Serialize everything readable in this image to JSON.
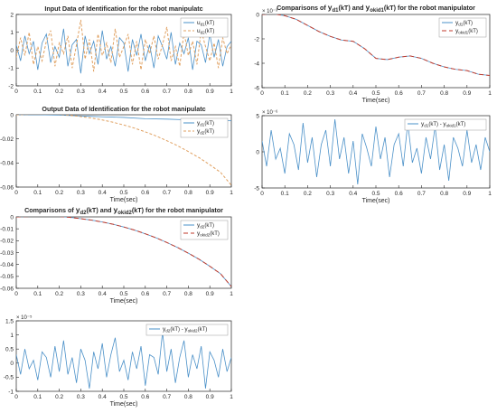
{
  "figure": {
    "background": "#ffffff",
    "axis_color": "#262626",
    "grid": false
  },
  "chart_data": [
    {
      "id": "p1",
      "type": "line",
      "title": "Input Data of Identification for the robot manipulatc",
      "xlabel": "",
      "ylabel": "",
      "xlim": [
        0,
        1
      ],
      "ylim": [
        -2,
        2
      ],
      "xticks": [
        0,
        0.1,
        0.2,
        0.3,
        0.4,
        0.5,
        0.6,
        0.7,
        0.8,
        0.9,
        1
      ],
      "yticks": [
        -2,
        -1,
        0,
        1,
        2
      ],
      "legend": {
        "position": "top-right"
      },
      "series": [
        {
          "label": "u_d1(kT)",
          "sub": "d1",
          "main": "u",
          "suffix": "(kT)",
          "color": "#4a90c8",
          "dash": "",
          "x": [
            0,
            0.02,
            0.04,
            0.06,
            0.08,
            0.1,
            0.12,
            0.14,
            0.16,
            0.18,
            0.2,
            0.22,
            0.24,
            0.26,
            0.28,
            0.3,
            0.32,
            0.34,
            0.36,
            0.38,
            0.4,
            0.42,
            0.44,
            0.46,
            0.48,
            0.5,
            0.52,
            0.54,
            0.56,
            0.58,
            0.6,
            0.62,
            0.64,
            0.66,
            0.68,
            0.7,
            0.72,
            0.74,
            0.76,
            0.78,
            0.8,
            0.82,
            0.84,
            0.86,
            0.88,
            0.9,
            0.92,
            0.94,
            0.96,
            0.98,
            1
          ],
          "y": [
            0.3,
            -0.6,
            0.8,
            -0.2,
            0.5,
            -1.1,
            0.4,
            0.9,
            -0.7,
            0.2,
            -0.4,
            1.2,
            -0.9,
            0.3,
            0.6,
            -1.3,
            0.8,
            -0.2,
            0.5,
            -0.8,
            1.1,
            -0.5,
            0.2,
            -0.9,
            0.7,
            0.4,
            -1.2,
            0.6,
            -0.3,
            0.9,
            -0.6,
            0.3,
            -1.0,
            0.8,
            0.2,
            -0.5,
            1.0,
            -0.8,
            0.4,
            -0.2,
            0.7,
            -1.1,
            0.5,
            0.3,
            -0.7,
            0.9,
            -0.4,
            0.6,
            -0.9,
            0.2,
            0.5
          ]
        },
        {
          "label": "u_d2(kT)",
          "sub": "d2",
          "main": "u",
          "suffix": "(kT)",
          "color": "#e0a060",
          "dash": "3,2",
          "x": [
            0,
            0.02,
            0.04,
            0.06,
            0.08,
            0.1,
            0.12,
            0.14,
            0.16,
            0.18,
            0.2,
            0.22,
            0.24,
            0.26,
            0.28,
            0.3,
            0.32,
            0.34,
            0.36,
            0.38,
            0.4,
            0.42,
            0.44,
            0.46,
            0.48,
            0.5,
            0.52,
            0.54,
            0.56,
            0.58,
            0.6,
            0.62,
            0.64,
            0.66,
            0.68,
            0.7,
            0.72,
            0.74,
            0.76,
            0.78,
            0.8,
            0.82,
            0.84,
            0.86,
            0.88,
            0.9,
            0.92,
            0.94,
            0.96,
            0.98,
            1
          ],
          "y": [
            -0.4,
            0.7,
            -0.3,
            1.0,
            -0.8,
            0.2,
            -0.6,
            0.5,
            1.1,
            -0.9,
            0.4,
            -0.2,
            0.8,
            -1.0,
            0.3,
            1.7,
            -0.5,
            0.6,
            -1.2,
            0.9,
            -0.3,
            0.4,
            -0.7,
            1.2,
            -0.4,
            0.2,
            0.9,
            -0.8,
            0.5,
            -1.1,
            0.6,
            -0.2,
            0.8,
            -0.5,
            0.3,
            1.3,
            -0.6,
            0.2,
            -0.9,
            1.0,
            -0.3,
            0.5,
            -0.8,
            1.1,
            0.2,
            -0.6,
            0.4,
            -1.0,
            0.7,
            -0.2,
            0.3
          ]
        }
      ]
    },
    {
      "id": "p2",
      "type": "line",
      "title": "Output Data of Identification for the robot manipulatc",
      "xlabel": "Time(sec)",
      "ylabel": "",
      "xlim": [
        0,
        1
      ],
      "ylim": [
        -0.06,
        0
      ],
      "xticks": [
        0,
        0.1,
        0.2,
        0.3,
        0.4,
        0.5,
        0.6,
        0.7,
        0.8,
        0.9,
        1
      ],
      "yticks": [
        -0.06,
        -0.04,
        -0.02,
        0
      ],
      "legend": {
        "position": "top-right"
      },
      "series": [
        {
          "label": "y_d1(kT)",
          "sub": "d1",
          "main": "y",
          "suffix": "(kT)",
          "color": "#4a90c8",
          "dash": "",
          "x": [
            0,
            0.1,
            0.2,
            0.3,
            0.4,
            0.5,
            0.6,
            0.7,
            0.8,
            0.9,
            1
          ],
          "y": [
            0,
            0,
            -0.0003,
            -0.001,
            -0.0017,
            -0.0022,
            -0.0033,
            -0.0036,
            -0.0042,
            -0.0047,
            -0.005
          ]
        },
        {
          "label": "y_d2(kT)",
          "sub": "d2",
          "main": "y",
          "suffix": "(kT)",
          "color": "#e0a060",
          "dash": "3,2",
          "x": [
            0,
            0.05,
            0.1,
            0.15,
            0.2,
            0.25,
            0.3,
            0.35,
            0.4,
            0.45,
            0.5,
            0.55,
            0.6,
            0.65,
            0.7,
            0.75,
            0.8,
            0.85,
            0.9,
            0.95,
            1
          ],
          "y": [
            0,
            0.0003,
            0.0006,
            0.0006,
            0.0003,
            -0.0004,
            -0.0015,
            -0.0027,
            -0.0043,
            -0.0062,
            -0.0085,
            -0.0111,
            -0.0142,
            -0.0176,
            -0.0215,
            -0.0257,
            -0.0305,
            -0.0356,
            -0.0415,
            -0.0478,
            -0.0585
          ]
        }
      ]
    },
    {
      "id": "p3",
      "type": "line",
      "title_parts": {
        "pre": "Comparisons of ",
        "a_main": "y",
        "a_sub": "d2",
        "a_suf": "(kT) and ",
        "b_main": "y",
        "b_sub": "okid2",
        "b_suf": "(kT) for the robot manipulator"
      },
      "xlabel": "Time(sec)",
      "ylabel": "",
      "xlim": [
        0,
        1
      ],
      "ylim": [
        -0.06,
        0
      ],
      "xticks": [
        0,
        0.1,
        0.2,
        0.3,
        0.4,
        0.5,
        0.6,
        0.7,
        0.8,
        0.9,
        1
      ],
      "yticks": [
        -0.06,
        -0.05,
        -0.04,
        -0.03,
        -0.02,
        -0.01,
        0
      ],
      "legend": {
        "position": "top-right"
      },
      "series": [
        {
          "label": "y_d2(kT)",
          "sub": "d2",
          "main": "y",
          "suffix": "(kT)",
          "color": "#4a90c8",
          "dash": "",
          "x": [
            0,
            0.05,
            0.1,
            0.15,
            0.2,
            0.25,
            0.3,
            0.35,
            0.4,
            0.45,
            0.5,
            0.55,
            0.6,
            0.65,
            0.7,
            0.75,
            0.8,
            0.85,
            0.9,
            0.95,
            1
          ],
          "y": [
            0,
            0.0003,
            0.0006,
            0.0006,
            0.0003,
            -0.0004,
            -0.0015,
            -0.0027,
            -0.0043,
            -0.0062,
            -0.0085,
            -0.0111,
            -0.0142,
            -0.0176,
            -0.0215,
            -0.0257,
            -0.0305,
            -0.0356,
            -0.0415,
            -0.0478,
            -0.0585
          ]
        },
        {
          "label": "y_okid2(kT)",
          "sub": "okid2",
          "main": "y",
          "suffix": "(kT)",
          "color": "#c0392b",
          "dash": "5,3",
          "x": [
            0,
            0.05,
            0.1,
            0.15,
            0.2,
            0.25,
            0.3,
            0.35,
            0.4,
            0.45,
            0.5,
            0.55,
            0.6,
            0.65,
            0.7,
            0.75,
            0.8,
            0.85,
            0.9,
            0.95,
            1
          ],
          "y": [
            0,
            0.0003,
            0.0006,
            0.0006,
            0.0003,
            -0.0004,
            -0.0015,
            -0.0027,
            -0.0043,
            -0.0062,
            -0.0085,
            -0.0111,
            -0.0142,
            -0.0176,
            -0.0215,
            -0.0257,
            -0.0305,
            -0.0356,
            -0.0415,
            -0.0478,
            -0.0585
          ]
        }
      ]
    },
    {
      "id": "p4",
      "type": "line",
      "title": "",
      "xlabel": "Time(sec)",
      "ylabel": "",
      "exponent": "× 10⁻⁵",
      "xlim": [
        0,
        1
      ],
      "ylim": [
        -1,
        1.5
      ],
      "xticks": [
        0,
        0.1,
        0.2,
        0.3,
        0.4,
        0.5,
        0.6,
        0.7,
        0.8,
        0.9,
        1
      ],
      "yticks": [
        -1,
        -0.5,
        0,
        0.5,
        1,
        1.5
      ],
      "legend": {
        "position": "top-right"
      },
      "series": [
        {
          "label": "y_d2(kT) - y_okid2(kT)",
          "color": "#4a90c8",
          "dash": "",
          "diff": [
            "d2",
            "okid2"
          ],
          "x": [
            0,
            0.02,
            0.04,
            0.06,
            0.08,
            0.1,
            0.12,
            0.14,
            0.16,
            0.18,
            0.2,
            0.22,
            0.24,
            0.26,
            0.28,
            0.3,
            0.32,
            0.34,
            0.36,
            0.38,
            0.4,
            0.42,
            0.44,
            0.46,
            0.48,
            0.5,
            0.52,
            0.54,
            0.56,
            0.58,
            0.6,
            0.62,
            0.64,
            0.66,
            0.68,
            0.7,
            0.72,
            0.74,
            0.76,
            0.78,
            0.8,
            0.82,
            0.84,
            0.86,
            0.88,
            0.9,
            0.92,
            0.94,
            0.96,
            0.98,
            1
          ],
          "y": [
            0.3,
            -0.4,
            0.5,
            -0.2,
            0.1,
            -0.6,
            0.4,
            0.2,
            -0.5,
            0.6,
            -0.3,
            0.8,
            -0.4,
            0.2,
            -0.7,
            0.5,
            0.1,
            -0.9,
            0.4,
            -0.2,
            0.7,
            -0.5,
            0.3,
            0.9,
            -0.3,
            0.1,
            -0.6,
            0.4,
            -0.2,
            0.6,
            -0.8,
            0.3,
            0.2,
            -0.4,
            1.1,
            -0.3,
            0.5,
            -0.7,
            0.2,
            0.8,
            -0.5,
            0.3,
            -0.2,
            0.6,
            -0.9,
            0.4,
            0.1,
            -0.5,
            0.5,
            -0.3,
            0.2
          ]
        }
      ]
    },
    {
      "id": "p5",
      "type": "line",
      "title_parts": {
        "pre": "Comparisons of ",
        "a_main": "y",
        "a_sub": "d1",
        "a_suf": "(kT) and ",
        "b_main": "y",
        "b_sub": "okid1",
        "b_suf": "(kT) for the robot manipulator"
      },
      "xlabel": "Time(sec)",
      "ylabel": "",
      "exponent": "× 10⁻³",
      "xlim": [
        0,
        1
      ],
      "ylim": [
        -6,
        0
      ],
      "xticks": [
        0,
        0.1,
        0.2,
        0.3,
        0.4,
        0.5,
        0.6,
        0.7,
        0.8,
        0.9,
        1
      ],
      "yticks": [
        -6,
        -4,
        -2,
        0
      ],
      "legend": {
        "position": "top-right"
      },
      "series": [
        {
          "label": "y_d1(kT)",
          "sub": "d1",
          "main": "y",
          "suffix": "(kT)",
          "color": "#4a90c8",
          "dash": "",
          "x": [
            0,
            0.05,
            0.1,
            0.15,
            0.2,
            0.25,
            0.3,
            0.35,
            0.4,
            0.45,
            0.5,
            0.55,
            0.6,
            0.65,
            0.7,
            0.75,
            0.8,
            0.85,
            0.9,
            0.95,
            1
          ],
          "y": [
            0,
            0.05,
            -0.1,
            -0.4,
            -0.9,
            -1.4,
            -1.8,
            -2.1,
            -2.2,
            -2.8,
            -3.6,
            -3.7,
            -3.5,
            -3.4,
            -3.6,
            -4.0,
            -4.3,
            -4.5,
            -4.6,
            -4.9,
            -5.0
          ]
        },
        {
          "label": "y_okid1(kT)",
          "sub": "okid1",
          "main": "y",
          "suffix": "(kT)",
          "color": "#c0392b",
          "dash": "5,3",
          "x": [
            0,
            0.05,
            0.1,
            0.15,
            0.2,
            0.25,
            0.3,
            0.35,
            0.4,
            0.45,
            0.5,
            0.55,
            0.6,
            0.65,
            0.7,
            0.75,
            0.8,
            0.85,
            0.9,
            0.95,
            1
          ],
          "y": [
            0,
            0.05,
            -0.1,
            -0.4,
            -0.9,
            -1.4,
            -1.8,
            -2.1,
            -2.2,
            -2.8,
            -3.6,
            -3.7,
            -3.5,
            -3.4,
            -3.6,
            -4.0,
            -4.3,
            -4.5,
            -4.6,
            -4.9,
            -5.0
          ]
        }
      ]
    },
    {
      "id": "p6",
      "type": "line",
      "title": "",
      "xlabel": "Time(sec)",
      "ylabel": "",
      "exponent": "× 10⁻⁶",
      "xlim": [
        0,
        1
      ],
      "ylim": [
        -5,
        5
      ],
      "xticks": [
        0,
        0.1,
        0.2,
        0.3,
        0.4,
        0.5,
        0.6,
        0.7,
        0.8,
        0.9,
        1
      ],
      "yticks": [
        -5,
        0,
        5
      ],
      "legend": {
        "position": "top-right"
      },
      "series": [
        {
          "label": "y_d1(kT) - y_okid1(kT)",
          "color": "#4a90c8",
          "dash": "",
          "diff": [
            "d1",
            "okid1"
          ],
          "x": [
            0,
            0.02,
            0.04,
            0.06,
            0.08,
            0.1,
            0.12,
            0.14,
            0.16,
            0.18,
            0.2,
            0.22,
            0.24,
            0.26,
            0.28,
            0.3,
            0.32,
            0.34,
            0.36,
            0.38,
            0.4,
            0.42,
            0.44,
            0.46,
            0.48,
            0.5,
            0.52,
            0.54,
            0.56,
            0.58,
            0.6,
            0.62,
            0.64,
            0.66,
            0.68,
            0.7,
            0.72,
            0.74,
            0.76,
            0.78,
            0.8,
            0.82,
            0.84,
            0.86,
            0.88,
            0.9,
            0.92,
            0.94,
            0.96,
            0.98,
            1
          ],
          "y": [
            1.5,
            -2.0,
            3.0,
            -1.0,
            0.5,
            -3.0,
            2.5,
            1.0,
            -2.5,
            4.0,
            -1.5,
            2.0,
            -3.5,
            1.0,
            3.0,
            -2.0,
            4.5,
            -1.0,
            2.0,
            -3.0,
            1.5,
            -4.5,
            2.5,
            0.5,
            -2.0,
            3.5,
            -1.0,
            2.0,
            -3.5,
            1.0,
            2.5,
            -2.0,
            4.0,
            -1.5,
            0.5,
            -3.0,
            2.0,
            -1.0,
            3.5,
            -2.5,
            1.0,
            -4.0,
            2.0,
            0.5,
            -2.0,
            3.0,
            -1.5,
            1.0,
            -2.5,
            2.0,
            0.0
          ]
        }
      ]
    }
  ]
}
